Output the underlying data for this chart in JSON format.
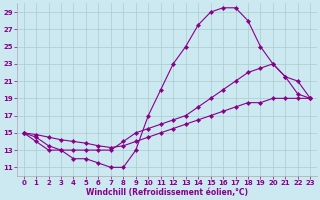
{
  "xlabel": "Windchill (Refroidissement éolien,°C)",
  "background_color": "#cce8f0",
  "line_color": "#880088",
  "grid_color": "#aacccc",
  "border_color": "#aaaaaa",
  "xlim": [
    -0.5,
    23.5
  ],
  "ylim": [
    10,
    30
  ],
  "yticks": [
    11,
    13,
    15,
    17,
    19,
    21,
    23,
    25,
    27,
    29
  ],
  "xticks": [
    0,
    1,
    2,
    3,
    4,
    5,
    6,
    7,
    8,
    9,
    10,
    11,
    12,
    13,
    14,
    15,
    16,
    17,
    18,
    19,
    20,
    21,
    22,
    23
  ],
  "line1_x": [
    0,
    1,
    2,
    3,
    4,
    5,
    6,
    7,
    8,
    9,
    10,
    11,
    12,
    13,
    14,
    15,
    16,
    17,
    18,
    19,
    20,
    21,
    22,
    23
  ],
  "line1_y": [
    15,
    14,
    13,
    13,
    12,
    12,
    11.5,
    11,
    11,
    13,
    17,
    20,
    23,
    25,
    27.5,
    29,
    29.5,
    29.5,
    28,
    25,
    23,
    21.5,
    21,
    19
  ],
  "line2_x": [
    0,
    1,
    2,
    3,
    4,
    5,
    6,
    7,
    8,
    9,
    10,
    11,
    12,
    13,
    14,
    15,
    16,
    17,
    18,
    19,
    20,
    21,
    22,
    23
  ],
  "line2_y": [
    15,
    14.5,
    13.5,
    13,
    13,
    13,
    13,
    13,
    14,
    15,
    15.5,
    16,
    16.5,
    17,
    18,
    19,
    20,
    21,
    22,
    22.5,
    23,
    21.5,
    19.5,
    19
  ],
  "line3_x": [
    0,
    1,
    2,
    3,
    4,
    5,
    6,
    7,
    8,
    9,
    10,
    11,
    12,
    13,
    14,
    15,
    16,
    17,
    18,
    19,
    20,
    21,
    22,
    23
  ],
  "line3_y": [
    15,
    14.8,
    14.5,
    14.2,
    14,
    13.8,
    13.5,
    13.3,
    13.5,
    14,
    14.5,
    15,
    15.5,
    16,
    16.5,
    17,
    17.5,
    18,
    18.5,
    18.5,
    19,
    19,
    19,
    19
  ]
}
